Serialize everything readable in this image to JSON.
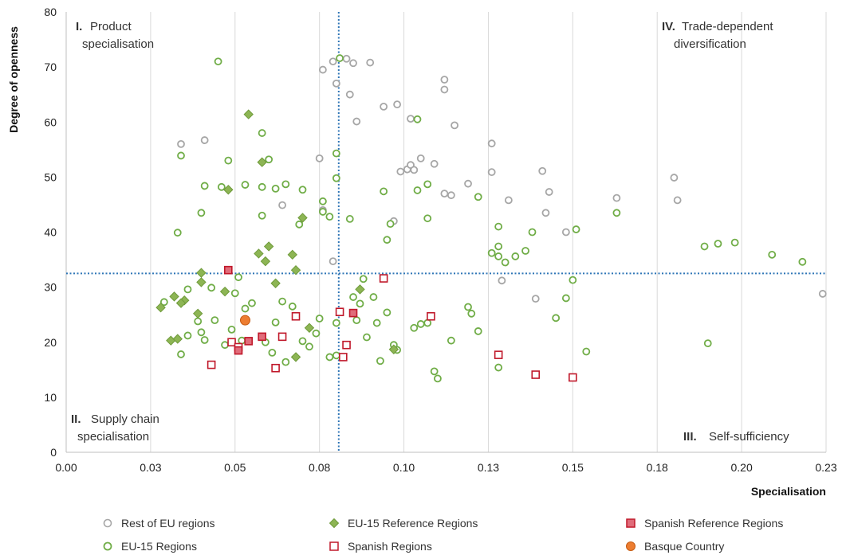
{
  "chart_data": {
    "type": "scatter",
    "xlabel": "Specialisation",
    "ylabel": "Degree of openness",
    "xlim": [
      0,
      0.225
    ],
    "ylim": [
      0,
      80
    ],
    "x_ticks": [
      0,
      0.025,
      0.05,
      0.075,
      0.1,
      0.125,
      0.15,
      0.175,
      0.2,
      0.225
    ],
    "x_tick_labels": [
      "0.00",
      "0.03",
      "0.05",
      "0.08",
      "0.10",
      "0.13",
      "0.15",
      "0.18",
      "0.20",
      "0.23"
    ],
    "y_ticks": [
      0,
      10,
      20,
      30,
      40,
      50,
      60,
      70,
      80
    ],
    "y_tick_labels": [
      "0",
      "10",
      "20",
      "30",
      "40",
      "50",
      "60",
      "70",
      "80"
    ],
    "grid": "vertical",
    "reference_lines": {
      "x": 0.0807,
      "y": 32.5
    },
    "quadrants": [
      {
        "num": "I.",
        "lines": [
          "Product",
          "specialisation"
        ],
        "pos": "top-left"
      },
      {
        "num": "IV.",
        "lines": [
          "Trade-dependent",
          "diversification"
        ],
        "pos": "top-right"
      },
      {
        "num": "II.",
        "lines": [
          "Supply chain",
          "specialisation"
        ],
        "pos": "bottom-left"
      },
      {
        "num": "III.",
        "lines": [
          "Self-sufficiency"
        ],
        "pos": "bottom-right"
      }
    ],
    "legend_position": "bottom",
    "series": [
      {
        "name": "Rest of EU regions",
        "marker": "circle-open",
        "color": "#a6a6a6",
        "points": [
          [
            0.034,
            56.0
          ],
          [
            0.041,
            56.7
          ],
          [
            0.064,
            44.9
          ],
          [
            0.075,
            53.4
          ],
          [
            0.076,
            44.0
          ],
          [
            0.076,
            69.5
          ],
          [
            0.079,
            71.0
          ],
          [
            0.08,
            67.0
          ],
          [
            0.079,
            34.7
          ],
          [
            0.083,
            71.5
          ],
          [
            0.084,
            65.0
          ],
          [
            0.085,
            70.7
          ],
          [
            0.086,
            60.1
          ],
          [
            0.09,
            70.8
          ],
          [
            0.094,
            62.8
          ],
          [
            0.098,
            63.2
          ],
          [
            0.097,
            42.0
          ],
          [
            0.099,
            51.0
          ],
          [
            0.101,
            51.4
          ],
          [
            0.102,
            52.2
          ],
          [
            0.103,
            51.3
          ],
          [
            0.102,
            60.6
          ],
          [
            0.105,
            53.4
          ],
          [
            0.109,
            52.4
          ],
          [
            0.112,
            67.7
          ],
          [
            0.112,
            65.9
          ],
          [
            0.112,
            47.0
          ],
          [
            0.114,
            46.7
          ],
          [
            0.115,
            59.4
          ],
          [
            0.119,
            48.8
          ],
          [
            0.126,
            56.1
          ],
          [
            0.126,
            50.9
          ],
          [
            0.129,
            31.2
          ],
          [
            0.131,
            45.8
          ],
          [
            0.139,
            27.9
          ],
          [
            0.141,
            51.1
          ],
          [
            0.142,
            43.5
          ],
          [
            0.143,
            47.3
          ],
          [
            0.148,
            40.0
          ],
          [
            0.163,
            46.2
          ],
          [
            0.18,
            49.9
          ],
          [
            0.181,
            45.8
          ],
          [
            0.224,
            28.8
          ]
        ]
      },
      {
        "name": "EU-15 Regions",
        "marker": "circle-open",
        "color": "#70ad47",
        "points": [
          [
            0.045,
            71.0
          ],
          [
            0.058,
            58.0
          ],
          [
            0.081,
            71.6
          ],
          [
            0.104,
            60.5
          ],
          [
            0.034,
            53.9
          ],
          [
            0.048,
            53.0
          ],
          [
            0.06,
            53.2
          ],
          [
            0.08,
            54.3
          ],
          [
            0.041,
            48.4
          ],
          [
            0.046,
            48.2
          ],
          [
            0.053,
            48.6
          ],
          [
            0.058,
            48.2
          ],
          [
            0.062,
            47.9
          ],
          [
            0.065,
            48.7
          ],
          [
            0.07,
            47.7
          ],
          [
            0.08,
            49.8
          ],
          [
            0.094,
            47.4
          ],
          [
            0.104,
            47.6
          ],
          [
            0.107,
            48.7
          ],
          [
            0.076,
            45.6
          ],
          [
            0.033,
            39.9
          ],
          [
            0.04,
            43.5
          ],
          [
            0.058,
            43.0
          ],
          [
            0.069,
            41.4
          ],
          [
            0.076,
            43.7
          ],
          [
            0.078,
            42.8
          ],
          [
            0.084,
            42.4
          ],
          [
            0.096,
            41.5
          ],
          [
            0.107,
            42.5
          ],
          [
            0.095,
            38.6
          ],
          [
            0.128,
            41.0
          ],
          [
            0.122,
            46.4
          ],
          [
            0.138,
            40.0
          ],
          [
            0.136,
            36.6
          ],
          [
            0.126,
            36.2
          ],
          [
            0.133,
            35.6
          ],
          [
            0.128,
            37.4
          ],
          [
            0.13,
            34.5
          ],
          [
            0.128,
            35.6
          ],
          [
            0.151,
            40.5
          ],
          [
            0.163,
            43.5
          ],
          [
            0.189,
            37.4
          ],
          [
            0.193,
            37.9
          ],
          [
            0.198,
            38.1
          ],
          [
            0.209,
            35.9
          ],
          [
            0.218,
            34.6
          ],
          [
            0.029,
            27.3
          ],
          [
            0.036,
            29.6
          ],
          [
            0.043,
            29.9
          ],
          [
            0.05,
            28.9
          ],
          [
            0.051,
            31.8
          ],
          [
            0.039,
            23.8
          ],
          [
            0.044,
            24.0
          ],
          [
            0.04,
            21.8
          ],
          [
            0.049,
            22.3
          ],
          [
            0.052,
            20.3
          ],
          [
            0.047,
            19.5
          ],
          [
            0.034,
            17.8
          ],
          [
            0.036,
            21.2
          ],
          [
            0.041,
            20.4
          ],
          [
            0.055,
            27.1
          ],
          [
            0.053,
            26.1
          ],
          [
            0.064,
            27.4
          ],
          [
            0.067,
            26.5
          ],
          [
            0.062,
            23.6
          ],
          [
            0.059,
            20.0
          ],
          [
            0.061,
            18.1
          ],
          [
            0.065,
            16.4
          ],
          [
            0.07,
            20.2
          ],
          [
            0.072,
            19.2
          ],
          [
            0.074,
            21.6
          ],
          [
            0.075,
            24.3
          ],
          [
            0.078,
            17.3
          ],
          [
            0.08,
            17.6
          ],
          [
            0.08,
            23.5
          ],
          [
            0.085,
            28.2
          ],
          [
            0.087,
            27.0
          ],
          [
            0.088,
            31.5
          ],
          [
            0.086,
            24.0
          ],
          [
            0.092,
            23.5
          ],
          [
            0.089,
            20.9
          ],
          [
            0.093,
            16.6
          ],
          [
            0.091,
            28.2
          ],
          [
            0.095,
            25.4
          ],
          [
            0.097,
            19.5
          ],
          [
            0.098,
            18.6
          ],
          [
            0.103,
            22.6
          ],
          [
            0.105,
            23.3
          ],
          [
            0.107,
            23.5
          ],
          [
            0.119,
            26.4
          ],
          [
            0.12,
            25.2
          ],
          [
            0.122,
            22.0
          ],
          [
            0.114,
            20.3
          ],
          [
            0.109,
            14.7
          ],
          [
            0.11,
            13.4
          ],
          [
            0.128,
            15.4
          ],
          [
            0.145,
            24.4
          ],
          [
            0.148,
            28.0
          ],
          [
            0.15,
            31.3
          ],
          [
            0.154,
            18.3
          ],
          [
            0.19,
            19.8
          ]
        ]
      },
      {
        "name": "EU-15 Reference Regions",
        "marker": "diamond-filled",
        "color": "#8db554",
        "points": [
          [
            0.054,
            61.4
          ],
          [
            0.058,
            52.7
          ],
          [
            0.048,
            47.7
          ],
          [
            0.07,
            42.6
          ],
          [
            0.06,
            37.4
          ],
          [
            0.057,
            36.1
          ],
          [
            0.067,
            35.9
          ],
          [
            0.059,
            34.7
          ],
          [
            0.068,
            33.1
          ],
          [
            0.04,
            32.6
          ],
          [
            0.04,
            30.9
          ],
          [
            0.047,
            29.2
          ],
          [
            0.062,
            30.7
          ],
          [
            0.087,
            29.6
          ],
          [
            0.028,
            26.3
          ],
          [
            0.032,
            28.3
          ],
          [
            0.035,
            27.6
          ],
          [
            0.034,
            27.1
          ],
          [
            0.039,
            25.2
          ],
          [
            0.072,
            22.6
          ],
          [
            0.068,
            17.3
          ],
          [
            0.031,
            20.3
          ],
          [
            0.033,
            20.6
          ],
          [
            0.097,
            18.7
          ]
        ]
      },
      {
        "name": "Spanish Regions",
        "marker": "square-open",
        "color": "#c0182a",
        "points": [
          [
            0.043,
            15.9
          ],
          [
            0.049,
            20.0
          ],
          [
            0.051,
            19.1
          ],
          [
            0.062,
            15.3
          ],
          [
            0.064,
            21.0
          ],
          [
            0.068,
            24.7
          ],
          [
            0.081,
            25.5
          ],
          [
            0.082,
            17.3
          ],
          [
            0.083,
            19.5
          ],
          [
            0.094,
            31.6
          ],
          [
            0.108,
            24.7
          ],
          [
            0.128,
            17.7
          ],
          [
            0.139,
            14.1
          ],
          [
            0.15,
            13.6
          ]
        ]
      },
      {
        "name": "Spanish Reference Regions",
        "marker": "square-filled",
        "color": "#c0182a",
        "points": [
          [
            0.048,
            33.1
          ],
          [
            0.051,
            18.5
          ],
          [
            0.054,
            20.2
          ],
          [
            0.058,
            21.0
          ],
          [
            0.085,
            25.3
          ]
        ]
      },
      {
        "name": "Basque Country",
        "marker": "circle-filled",
        "color": "#ed7d31",
        "points": [
          [
            0.053,
            24.0
          ]
        ]
      }
    ]
  },
  "legend": {
    "items": [
      {
        "label": "Rest of EU regions",
        "icon": "circle-open-icon"
      },
      {
        "label": "EU-15 Reference Regions",
        "icon": "diamond-icon"
      },
      {
        "label": "Spanish Reference Regions",
        "icon": "square-filled-icon"
      },
      {
        "label": "EU-15 Regions",
        "icon": "circle-open-icon"
      },
      {
        "label": "Spanish Regions",
        "icon": "square-open-icon"
      },
      {
        "label": "Basque Country",
        "icon": "circle-filled-icon"
      }
    ]
  }
}
